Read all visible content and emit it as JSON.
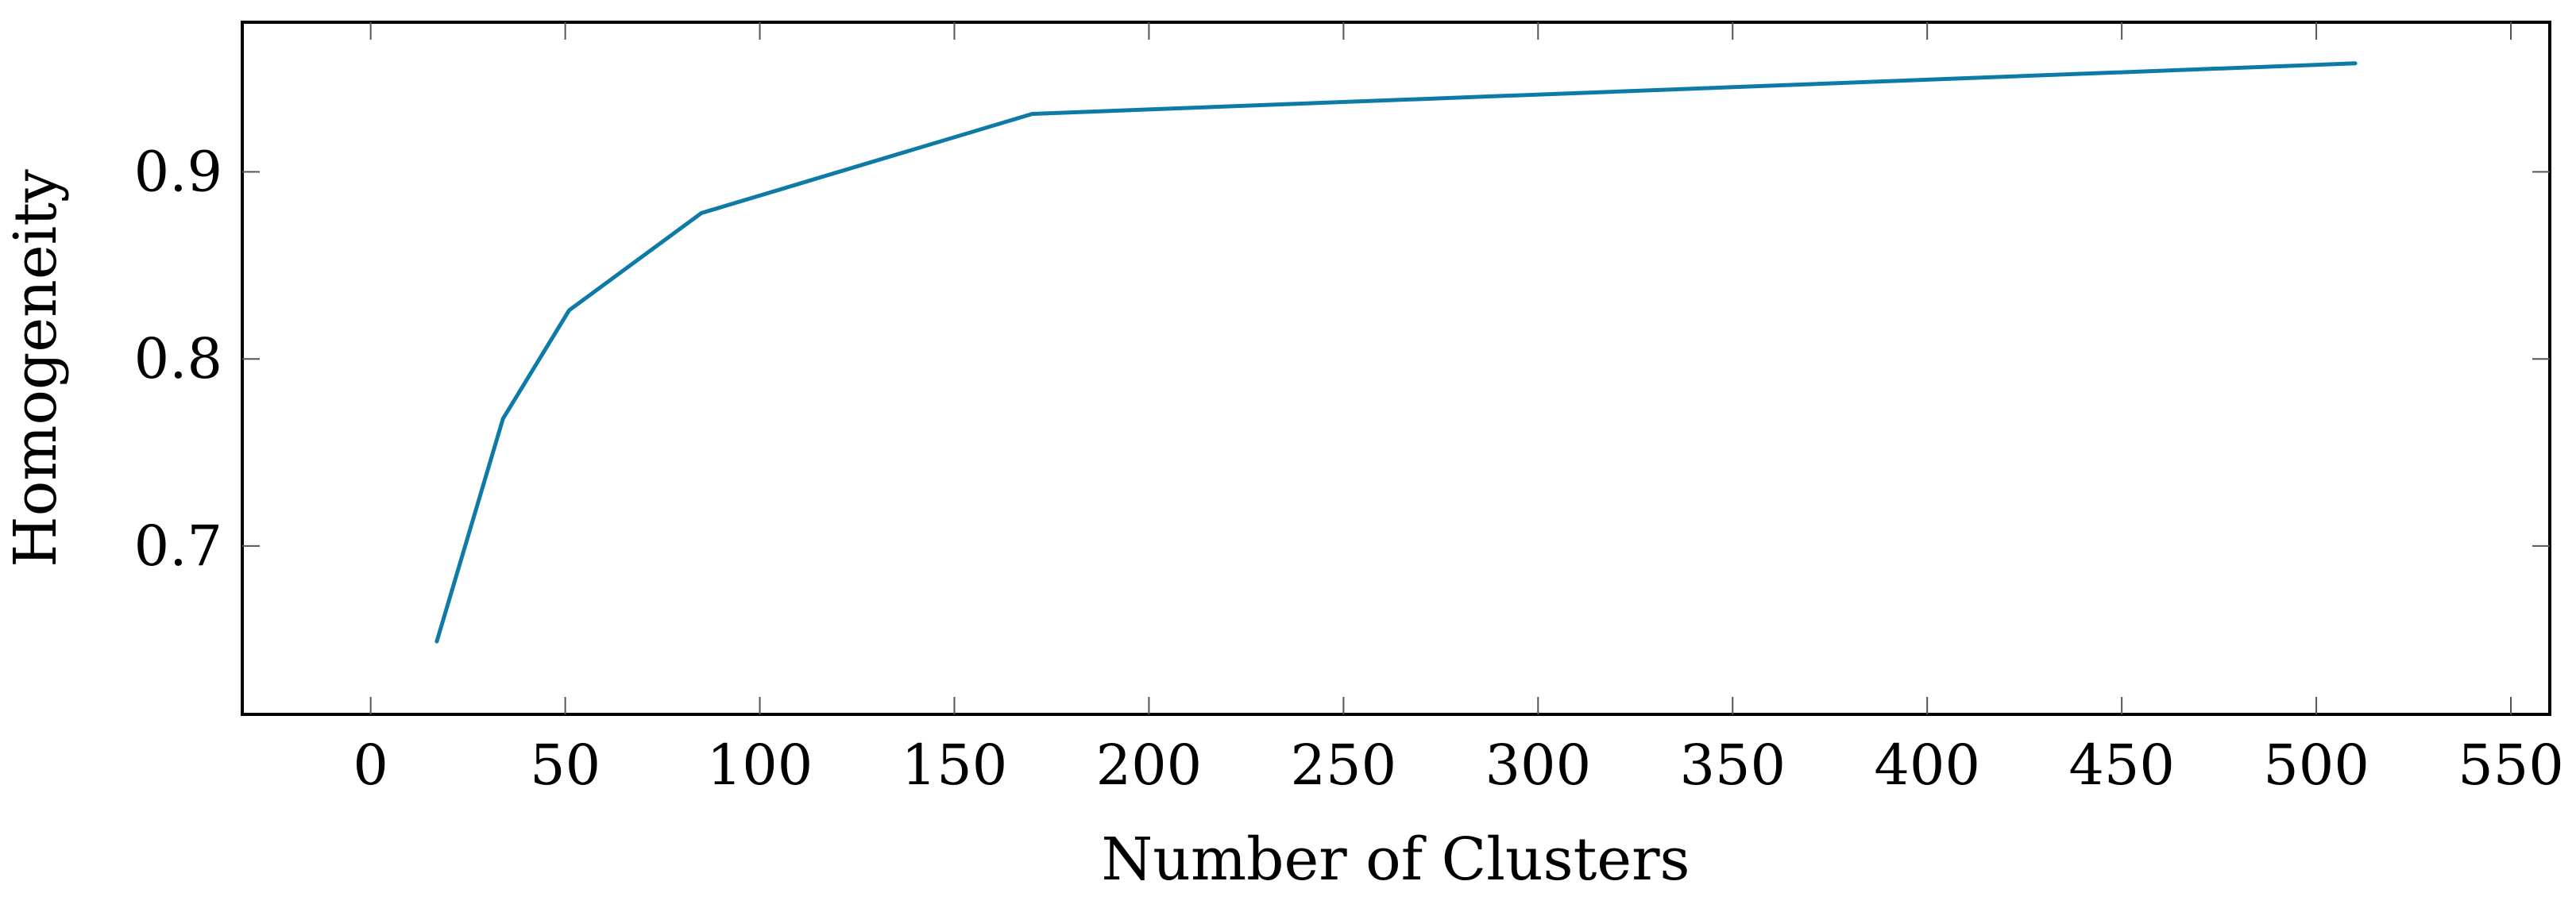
{
  "chart_data": {
    "type": "line",
    "title": "",
    "xlabel": "Number of Clusters",
    "ylabel": "Homogeneity",
    "xlim": [
      -33,
      560
    ],
    "ylim": [
      0.61,
      0.98
    ],
    "x_ticks": [
      0,
      50,
      100,
      150,
      200,
      250,
      300,
      350,
      400,
      450,
      500,
      550
    ],
    "x_tick_labels": [
      "0",
      "50",
      "100",
      "150",
      "200",
      "250",
      "300",
      "350",
      "400",
      "450",
      "500",
      "550"
    ],
    "y_ticks": [
      0.7,
      0.8,
      0.9
    ],
    "y_tick_labels": [
      "0.7",
      "0.8",
      "0.9"
    ],
    "grid": false,
    "series": [
      {
        "color": "#0e7ba6",
        "x": [
          17,
          34,
          51,
          85,
          170,
          510
        ],
        "y": [
          0.649,
          0.768,
          0.826,
          0.878,
          0.931,
          0.958
        ]
      }
    ]
  }
}
